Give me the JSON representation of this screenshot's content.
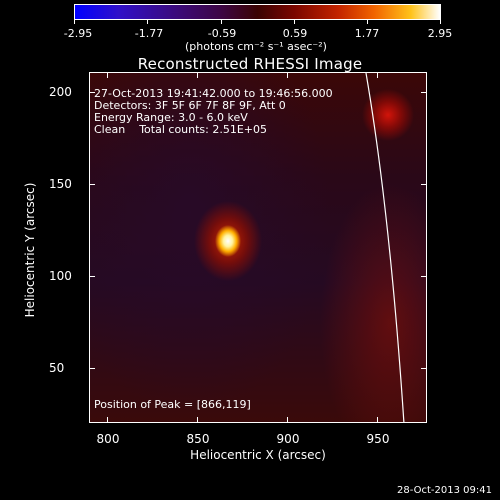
{
  "colorbar": {
    "tick_labels": [
      "-2.95",
      "-1.77",
      "-0.59",
      "0.59",
      "1.77",
      "2.95"
    ],
    "units": "(photons cm⁻² s⁻¹ asec⁻²)",
    "colors": [
      "#0000ff",
      "#3b0a7a",
      "#3a0303",
      "#c22300",
      "#ffc21a",
      "#ffffff"
    ]
  },
  "title": "Reconstructed RHESSI Image",
  "info": {
    "time_range": "27-Oct-2013 19:41:42.000 to 19:46:56.000",
    "detectors": "Detectors: 3F 5F 6F 7F 8F 9F, Att 0",
    "energy_range": "Energy Range: 3.0 - 6.0 keV",
    "clean": "Clean    Total counts: 2.51E+05",
    "peak": "Position of Peak = [866,119]"
  },
  "axes": {
    "xlabel": "Heliocentric X (arcsec)",
    "ylabel": "Heliocentric Y (arcsec)",
    "xticks": [
      "800",
      "850",
      "900",
      "950"
    ],
    "yticks": [
      "200",
      "150",
      "100",
      "50"
    ]
  },
  "datestamp": "28-Oct-2013 09:41",
  "chart_data": {
    "type": "heatmap",
    "title": "Reconstructed RHESSI Image",
    "xlabel": "Heliocentric X (arcsec)",
    "ylabel": "Heliocentric Y (arcsec)",
    "xlim": [
      782,
      975
    ],
    "ylim": [
      19,
      210
    ],
    "colorbar_range": [
      -2.95,
      2.95
    ],
    "peak": [
      866,
      119
    ]
  }
}
